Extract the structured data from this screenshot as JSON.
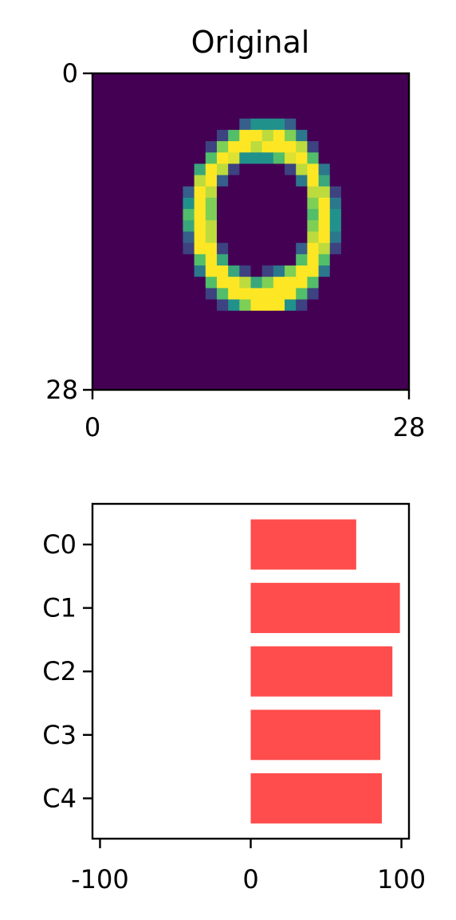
{
  "chart_data": [
    {
      "type": "heatmap",
      "title": "Original",
      "colormap": "viridis",
      "xlim": [
        0,
        28
      ],
      "ylim": [
        28,
        0
      ],
      "x_ticks": [
        "0",
        "28"
      ],
      "y_ticks": [
        "0",
        "28"
      ],
      "grid": false,
      "pixels": [
        [
          0,
          0,
          0,
          0,
          0,
          0,
          0,
          0,
          0,
          0,
          0,
          0,
          0,
          0,
          0,
          0,
          0,
          0,
          0,
          0,
          0,
          0,
          0,
          0,
          0,
          0,
          0,
          0
        ],
        [
          0,
          0,
          0,
          0,
          0,
          0,
          0,
          0,
          0,
          0,
          0,
          0,
          0,
          0,
          0,
          0,
          0,
          0,
          0,
          0,
          0,
          0,
          0,
          0,
          0,
          0,
          0,
          0
        ],
        [
          0,
          0,
          0,
          0,
          0,
          0,
          0,
          0,
          0,
          0,
          0,
          0,
          0,
          0,
          0,
          0,
          0,
          0,
          0,
          0,
          0,
          0,
          0,
          0,
          0,
          0,
          0,
          0
        ],
        [
          0,
          0,
          0,
          0,
          0,
          0,
          0,
          0,
          0,
          0,
          0,
          0,
          0,
          0,
          0,
          0,
          0,
          0,
          0,
          0,
          0,
          0,
          0,
          0,
          0,
          0,
          0,
          0
        ],
        [
          0,
          0,
          0,
          0,
          0,
          0,
          0,
          0,
          0,
          0,
          0,
          0,
          0,
          0.3,
          0.5,
          0.5,
          0.5,
          0.3,
          0,
          0,
          0,
          0,
          0,
          0,
          0,
          0,
          0,
          0
        ],
        [
          0,
          0,
          0,
          0,
          0,
          0,
          0,
          0,
          0,
          0,
          0,
          0.2,
          0.7,
          1,
          1,
          0.9,
          1,
          0.8,
          0.4,
          0,
          0,
          0,
          0,
          0,
          0,
          0,
          0,
          0
        ],
        [
          0,
          0,
          0,
          0,
          0,
          0,
          0,
          0,
          0,
          0,
          0.2,
          0.8,
          1,
          1,
          0.9,
          1,
          1,
          1,
          0.9,
          0.2,
          0,
          0,
          0,
          0,
          0,
          0,
          0,
          0
        ],
        [
          0,
          0,
          0,
          0,
          0,
          0,
          0,
          0,
          0,
          0,
          0.7,
          1,
          0.95,
          0.5,
          0.5,
          0.5,
          0.7,
          0.95,
          1,
          0.7,
          0,
          0,
          0,
          0,
          0,
          0,
          0,
          0
        ],
        [
          0,
          0,
          0,
          0,
          0,
          0,
          0,
          0,
          0,
          0.6,
          1,
          0.9,
          0.2,
          0,
          0,
          0,
          0,
          0.2,
          0.9,
          1,
          0.4,
          0,
          0,
          0,
          0,
          0,
          0,
          0
        ],
        [
          0,
          0,
          0,
          0,
          0,
          0,
          0,
          0,
          0,
          0.9,
          1,
          0.3,
          0,
          0,
          0,
          0,
          0,
          0,
          0.4,
          1,
          0.6,
          0,
          0,
          0,
          0,
          0,
          0,
          0
        ],
        [
          0,
          0,
          0,
          0,
          0,
          0,
          0,
          0,
          0.3,
          1,
          0.9,
          0,
          0,
          0,
          0,
          0,
          0,
          0,
          0,
          0.9,
          0.9,
          0.2,
          0,
          0,
          0,
          0,
          0,
          0
        ],
        [
          0,
          0,
          0,
          0,
          0,
          0,
          0,
          0,
          0.5,
          1,
          0.8,
          0,
          0,
          0,
          0,
          0,
          0,
          0,
          0,
          0.8,
          1,
          0.4,
          0,
          0,
          0,
          0,
          0,
          0
        ],
        [
          0,
          0,
          0,
          0,
          0,
          0,
          0,
          0,
          0.7,
          1,
          0.8,
          0,
          0,
          0,
          0,
          0,
          0,
          0,
          0,
          0.7,
          1,
          0.5,
          0,
          0,
          0,
          0,
          0,
          0
        ],
        [
          0,
          0,
          0,
          0,
          0,
          0,
          0,
          0,
          0.6,
          1,
          0.9,
          0,
          0,
          0,
          0,
          0,
          0,
          0,
          0,
          0.8,
          1,
          0.5,
          0,
          0,
          0,
          0,
          0,
          0
        ],
        [
          0,
          0,
          0,
          0,
          0,
          0,
          0,
          0,
          0.3,
          1,
          0.9,
          0,
          0,
          0,
          0,
          0,
          0,
          0,
          0,
          0.9,
          1,
          0.4,
          0,
          0,
          0,
          0,
          0,
          0
        ],
        [
          0,
          0,
          0,
          0,
          0,
          0,
          0,
          0,
          0.2,
          1,
          1,
          0.2,
          0,
          0,
          0,
          0,
          0,
          0,
          0.3,
          1,
          0.9,
          0.2,
          0,
          0,
          0,
          0,
          0,
          0
        ],
        [
          0,
          0,
          0,
          0,
          0,
          0,
          0,
          0,
          0,
          0.7,
          1,
          0.6,
          0,
          0,
          0,
          0,
          0,
          0,
          0.7,
          1,
          0.7,
          0,
          0,
          0,
          0,
          0,
          0,
          0
        ],
        [
          0,
          0,
          0,
          0,
          0,
          0,
          0,
          0,
          0,
          0.4,
          1,
          1,
          0.6,
          0.2,
          0,
          0.2,
          0.4,
          0.8,
          1,
          1,
          0.4,
          0,
          0,
          0,
          0,
          0,
          0,
          0
        ],
        [
          0,
          0,
          0,
          0,
          0,
          0,
          0,
          0,
          0,
          0,
          0.7,
          1,
          1,
          0.9,
          0.6,
          0.8,
          1,
          1,
          1,
          0.7,
          0,
          0,
          0,
          0,
          0,
          0,
          0,
          0
        ],
        [
          0,
          0,
          0,
          0,
          0,
          0,
          0,
          0,
          0,
          0,
          0.2,
          0.7,
          1,
          1,
          1,
          1,
          1,
          1,
          0.7,
          0.2,
          0,
          0,
          0,
          0,
          0,
          0,
          0,
          0
        ],
        [
          0,
          0,
          0,
          0,
          0,
          0,
          0,
          0,
          0,
          0,
          0,
          0.2,
          0.5,
          0.8,
          1,
          1,
          1,
          0.5,
          0.2,
          0,
          0,
          0,
          0,
          0,
          0,
          0,
          0,
          0
        ],
        [
          0,
          0,
          0,
          0,
          0,
          0,
          0,
          0,
          0,
          0,
          0,
          0,
          0,
          0,
          0,
          0,
          0,
          0,
          0,
          0,
          0,
          0,
          0,
          0,
          0,
          0,
          0,
          0
        ],
        [
          0,
          0,
          0,
          0,
          0,
          0,
          0,
          0,
          0,
          0,
          0,
          0,
          0,
          0,
          0,
          0,
          0,
          0,
          0,
          0,
          0,
          0,
          0,
          0,
          0,
          0,
          0,
          0
        ],
        [
          0,
          0,
          0,
          0,
          0,
          0,
          0,
          0,
          0,
          0,
          0,
          0,
          0,
          0,
          0,
          0,
          0,
          0,
          0,
          0,
          0,
          0,
          0,
          0,
          0,
          0,
          0,
          0
        ],
        [
          0,
          0,
          0,
          0,
          0,
          0,
          0,
          0,
          0,
          0,
          0,
          0,
          0,
          0,
          0,
          0,
          0,
          0,
          0,
          0,
          0,
          0,
          0,
          0,
          0,
          0,
          0,
          0
        ],
        [
          0,
          0,
          0,
          0,
          0,
          0,
          0,
          0,
          0,
          0,
          0,
          0,
          0,
          0,
          0,
          0,
          0,
          0,
          0,
          0,
          0,
          0,
          0,
          0,
          0,
          0,
          0,
          0
        ],
        [
          0,
          0,
          0,
          0,
          0,
          0,
          0,
          0,
          0,
          0,
          0,
          0,
          0,
          0,
          0,
          0,
          0,
          0,
          0,
          0,
          0,
          0,
          0,
          0,
          0,
          0,
          0,
          0
        ],
        [
          0,
          0,
          0,
          0,
          0,
          0,
          0,
          0,
          0,
          0,
          0,
          0,
          0,
          0,
          0,
          0,
          0,
          0,
          0,
          0,
          0,
          0,
          0,
          0,
          0,
          0,
          0,
          0
        ]
      ]
    },
    {
      "type": "bar",
      "orientation": "horizontal",
      "categories": [
        "C0",
        "C1",
        "C2",
        "C3",
        "C4"
      ],
      "values": [
        70,
        99,
        94,
        86,
        87
      ],
      "bar_color": "#ff4c4c",
      "xlim": [
        -105,
        105
      ],
      "x_ticks": [
        "-100",
        "0",
        "100"
      ],
      "x_tick_values": [
        -100,
        0,
        100
      ],
      "grid": false
    }
  ]
}
